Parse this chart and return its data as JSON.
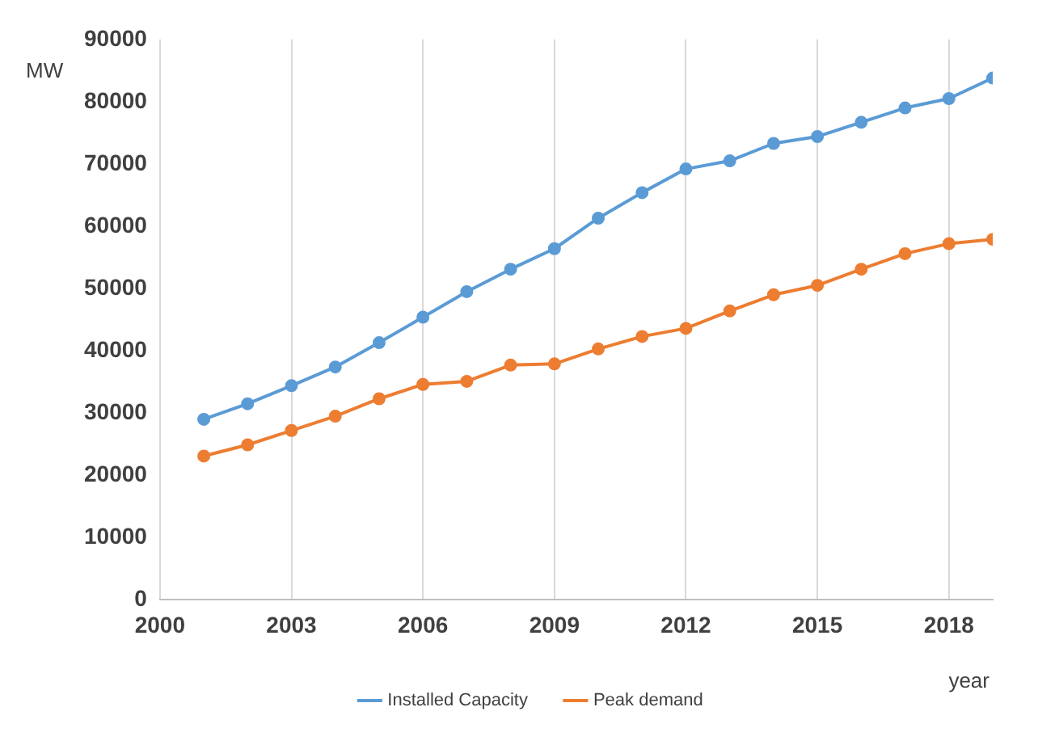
{
  "chart_data": {
    "type": "line",
    "xlabel": "year",
    "ylabel": "MW",
    "x": [
      2001,
      2002,
      2003,
      2004,
      2005,
      2006,
      2007,
      2008,
      2009,
      2010,
      2011,
      2012,
      2013,
      2014,
      2015,
      2016,
      2017,
      2018,
      2019
    ],
    "series": [
      {
        "name": "Installed Capacity",
        "color": "#5b9bd5",
        "values": [
          29000,
          31500,
          34400,
          37400,
          41300,
          45400,
          49500,
          53100,
          56400,
          61300,
          65400,
          69200,
          70500,
          73300,
          74400,
          76700,
          79000,
          80500,
          83800
        ]
      },
      {
        "name": "Peak demand",
        "color": "#ed7d31",
        "values": [
          23100,
          24900,
          27200,
          29500,
          32300,
          34600,
          35100,
          37700,
          37900,
          40300,
          42300,
          43600,
          46400,
          49000,
          50500,
          53100,
          55600,
          57200,
          57900
        ]
      }
    ],
    "xlim": [
      2000,
      2019
    ],
    "xticks": [
      2000,
      2003,
      2006,
      2009,
      2012,
      2015,
      2018
    ],
    "ylim": [
      0,
      90000
    ],
    "yticks": [
      0,
      10000,
      20000,
      30000,
      40000,
      50000,
      60000,
      70000,
      80000,
      90000
    ],
    "grid": "x",
    "legend": "bottom",
    "marker": "circle",
    "line_style": "solid"
  }
}
